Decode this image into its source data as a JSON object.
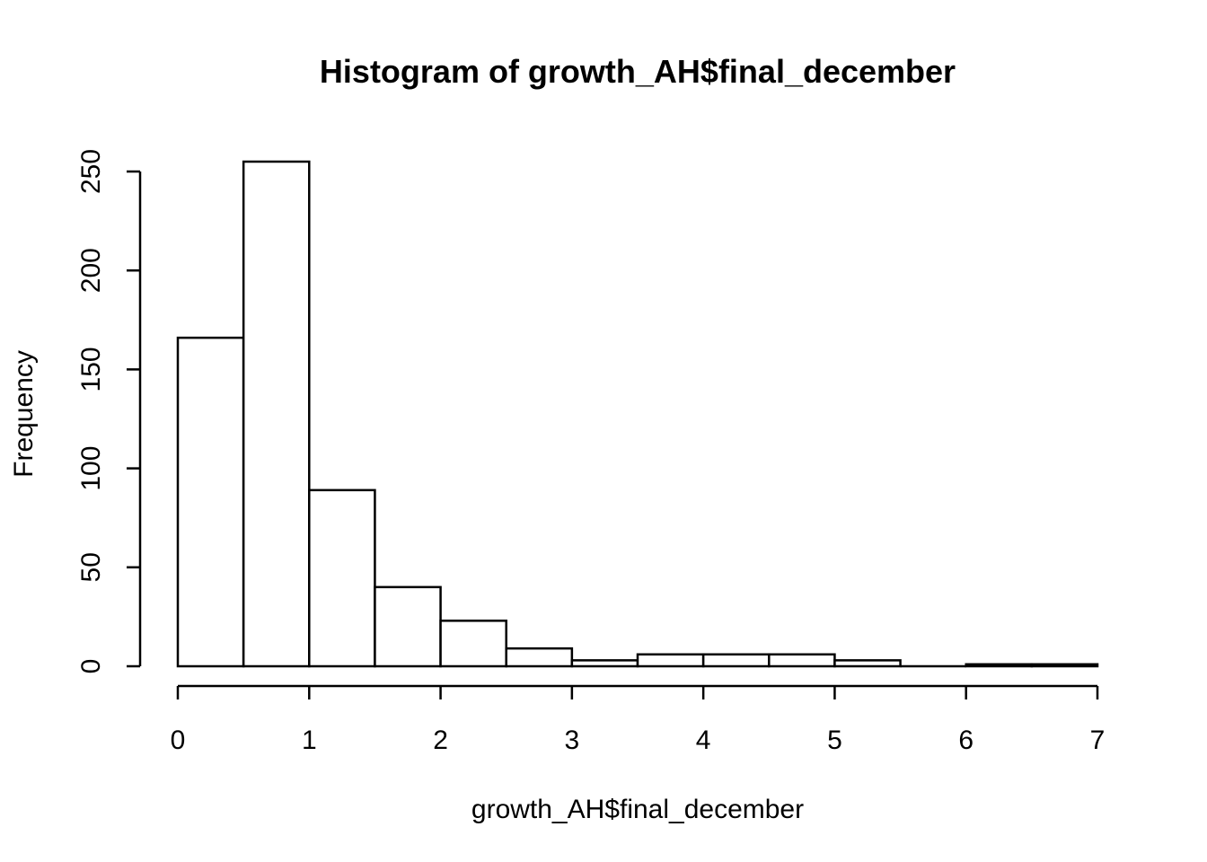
{
  "chart_data": {
    "type": "bar",
    "title": "Histogram of growth_AH$final_december",
    "xlabel": "growth_AH$final_december",
    "ylabel": "Frequency",
    "xlim": [
      0,
      7
    ],
    "ylim": [
      0,
      255
    ],
    "x_ticks": [
      0,
      1,
      2,
      3,
      4,
      5,
      6,
      7
    ],
    "y_ticks": [
      0,
      50,
      100,
      150,
      200,
      250
    ],
    "grid": false,
    "series": [
      {
        "bins": [
          {
            "start": 0.0,
            "end": 0.5,
            "count": 166
          },
          {
            "start": 0.5,
            "end": 1.0,
            "count": 255
          },
          {
            "start": 1.0,
            "end": 1.5,
            "count": 89
          },
          {
            "start": 1.5,
            "end": 2.0,
            "count": 40
          },
          {
            "start": 2.0,
            "end": 2.5,
            "count": 23
          },
          {
            "start": 2.5,
            "end": 3.0,
            "count": 9
          },
          {
            "start": 3.0,
            "end": 3.5,
            "count": 3
          },
          {
            "start": 3.5,
            "end": 4.0,
            "count": 6
          },
          {
            "start": 4.0,
            "end": 4.5,
            "count": 6
          },
          {
            "start": 4.5,
            "end": 5.0,
            "count": 6
          },
          {
            "start": 5.0,
            "end": 5.5,
            "count": 3
          },
          {
            "start": 5.5,
            "end": 6.0,
            "count": 0
          },
          {
            "start": 6.0,
            "end": 6.5,
            "count": 1
          },
          {
            "start": 6.5,
            "end": 7.0,
            "count": 1
          }
        ]
      }
    ]
  }
}
